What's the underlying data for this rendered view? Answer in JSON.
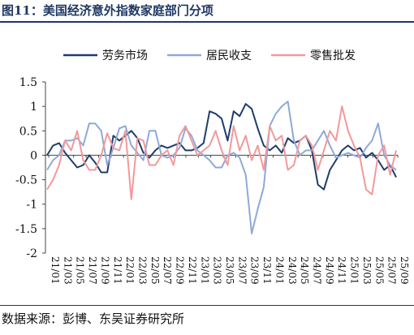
{
  "figure_label": "图11：",
  "figure_title": "美国经济意外指数家庭部门分项",
  "source_label": "数据来源：",
  "source_text": "彭博、东吴证券研究所",
  "colors": {
    "labor": "#1f3c6b",
    "income": "#8fa9d8",
    "retail": "#f2999b",
    "axis": "#444444",
    "title": "#1f3864"
  },
  "chart_data": {
    "type": "line",
    "title": "",
    "xlabel": "",
    "ylabel": "",
    "ylim": [
      -2,
      1.5
    ],
    "yticks": [
      "1.5",
      "1",
      "0.5",
      "0",
      "-0.5",
      "-1",
      "-1.5",
      "-2"
    ],
    "x_ticks": [
      "21/01",
      "21/03",
      "21/05",
      "21/07",
      "21/09",
      "21/11",
      "22/01",
      "22/03",
      "22/05",
      "22/07",
      "22/09",
      "22/11",
      "23/01",
      "23/03",
      "23/05",
      "23/07",
      "23/09",
      "23/11",
      "24/01",
      "24/03",
      "24/05",
      "24/07",
      "24/09",
      "24/11",
      "25/01",
      "25/03",
      "25/05",
      "25/07",
      "25/09"
    ],
    "legend_position": "top",
    "series": [
      {
        "name": "劳务市场",
        "key": "labor",
        "values": [
          0.0,
          0.2,
          0.25,
          0.05,
          -0.1,
          -0.25,
          -0.2,
          0.0,
          -0.15,
          -0.35,
          -0.35,
          0.4,
          0.3,
          0.4,
          0.5,
          0.35,
          0.05,
          -0.05,
          0.1,
          0.2,
          0.15,
          0.2,
          0.25,
          0.1,
          0.1,
          0.15,
          0.25,
          0.9,
          0.85,
          0.75,
          0.3,
          0.9,
          0.8,
          1.05,
          0.95,
          0.55,
          0.2,
          0.1,
          0.2,
          0.05,
          0.35,
          0.25,
          0.3,
          0.4,
          0.1,
          -0.6,
          -0.7,
          -0.3,
          -0.1,
          0.1,
          0.2,
          0.1,
          0.15,
          -0.05,
          0.05,
          -0.1,
          -0.3,
          -0.2,
          -0.45
        ]
      },
      {
        "name": "居民收支",
        "key": "income",
        "values": [
          -0.3,
          -0.1,
          0.0,
          0.3,
          0.3,
          0.35,
          0.2,
          0.65,
          0.65,
          0.5,
          -0.2,
          0.15,
          0.55,
          0.6,
          0.2,
          0.05,
          -0.1,
          0.5,
          0.5,
          0.0,
          -0.05,
          0.0,
          0.15,
          0.55,
          0.4,
          0.1,
          0.0,
          -0.1,
          -0.25,
          -0.25,
          0.0,
          0.05,
          -0.05,
          -0.4,
          -1.6,
          -1.1,
          -0.65,
          0.6,
          0.85,
          1.0,
          1.1,
          0.3,
          0.0,
          0.1,
          0.1,
          0.3,
          0.5,
          0.2,
          -0.05,
          0.0,
          0.05,
          0.0,
          -0.05,
          0.15,
          0.3,
          0.65,
          0.0,
          -0.2,
          -0.3
        ]
      },
      {
        "name": "零售批发",
        "key": "retail",
        "values": [
          -0.7,
          -0.5,
          -0.2,
          0.3,
          0.1,
          0.5,
          -0.1,
          -0.3,
          -0.3,
          0.0,
          0.45,
          0.15,
          0.1,
          0.5,
          -0.9,
          0.35,
          0.3,
          -0.2,
          -0.2,
          0.0,
          0.1,
          -0.2,
          0.4,
          0.6,
          0.3,
          0.0,
          0.1,
          0.2,
          0.5,
          0.1,
          -0.2,
          0.6,
          0.1,
          0.4,
          -0.1,
          0.2,
          -0.3,
          0.6,
          0.3,
          0.4,
          -0.3,
          -0.2,
          0.3,
          0.4,
          0.2,
          -0.3,
          0.1,
          0.5,
          0.3,
          1.0,
          0.5,
          0.2,
          -0.05,
          -0.7,
          -0.8,
          0.0,
          0.2,
          -0.4,
          0.1
        ]
      }
    ]
  }
}
